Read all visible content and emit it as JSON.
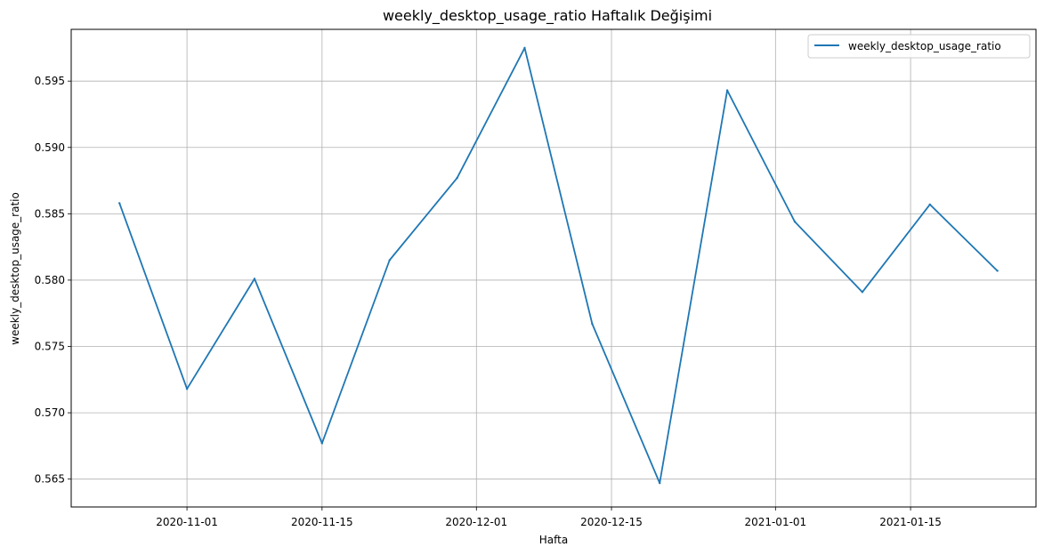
{
  "chart_data": {
    "type": "line",
    "title": "weekly_desktop_usage_ratio Haftalık Değişimi",
    "xlabel": "Hafta",
    "ylabel": "weekly_desktop_usage_ratio",
    "x": [
      "2020-10-25",
      "2020-11-01",
      "2020-11-08",
      "2020-11-15",
      "2020-11-22",
      "2020-11-29",
      "2020-12-06",
      "2020-12-13",
      "2020-12-20",
      "2020-12-27",
      "2021-01-03",
      "2021-01-10",
      "2021-01-17",
      "2021-01-24"
    ],
    "series": [
      {
        "name": "weekly_desktop_usage_ratio",
        "color": "#1f77b4",
        "values": [
          0.5858,
          0.5718,
          0.5801,
          0.5677,
          0.5815,
          0.5877,
          0.5975,
          0.5767,
          0.5647,
          0.5943,
          0.5844,
          0.5791,
          0.5857,
          0.5807
        ]
      }
    ],
    "xticks": [
      "2020-11-01",
      "2020-11-15",
      "2020-12-01",
      "2020-12-15",
      "2021-01-01",
      "2021-01-15"
    ],
    "yticks": [
      0.565,
      0.57,
      0.575,
      0.58,
      0.585,
      0.59,
      0.595
    ],
    "ytick_labels": [
      "0.565",
      "0.570",
      "0.575",
      "0.580",
      "0.585",
      "0.590",
      "0.595"
    ],
    "xlim": [
      "2020-10-20",
      "2021-01-28"
    ],
    "ylim": [
      0.5629,
      0.5989
    ],
    "grid": true,
    "legend_position": "top-right"
  }
}
